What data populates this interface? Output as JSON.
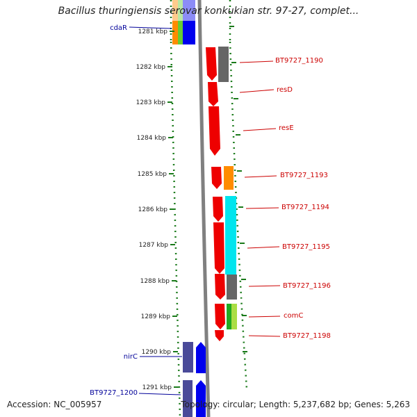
{
  "title": "Bacillus thuringiensis serovar konkukian str. 97-27, complet...",
  "footer": {
    "accession": "Accession: NC_005957",
    "summary": "Topology: circular; Length: 5,237,682 bp; Genes: 5,263"
  },
  "colors": {
    "tick": "#1a7a1a",
    "backbone": "#808080",
    "label_red": "#cc0000",
    "label_blue": "#000099"
  },
  "ticks": [
    "1281 kbp",
    "1282 kbp",
    "1283 kbp",
    "1284 kbp",
    "1285 kbp",
    "1286 kbp",
    "1287 kbp",
    "1288 kbp",
    "1289 kbp",
    "1290 kbp",
    "1291 kbp"
  ],
  "gene_labels": [
    {
      "text": "cdaR",
      "color": "blue"
    },
    {
      "text": "BT9727_1190",
      "color": "red"
    },
    {
      "text": "resD",
      "color": "red"
    },
    {
      "text": "resE",
      "color": "red"
    },
    {
      "text": "BT9727_1193",
      "color": "red"
    },
    {
      "text": "BT9727_1194",
      "color": "red"
    },
    {
      "text": "BT9727_1195",
      "color": "red"
    },
    {
      "text": "BT9727_1196",
      "color": "red"
    },
    {
      "text": "comC",
      "color": "red"
    },
    {
      "text": "BT9727_1198",
      "color": "red"
    },
    {
      "text": "nirC",
      "color": "blue"
    },
    {
      "text": "BT9727_1200",
      "color": "blue"
    }
  ]
}
